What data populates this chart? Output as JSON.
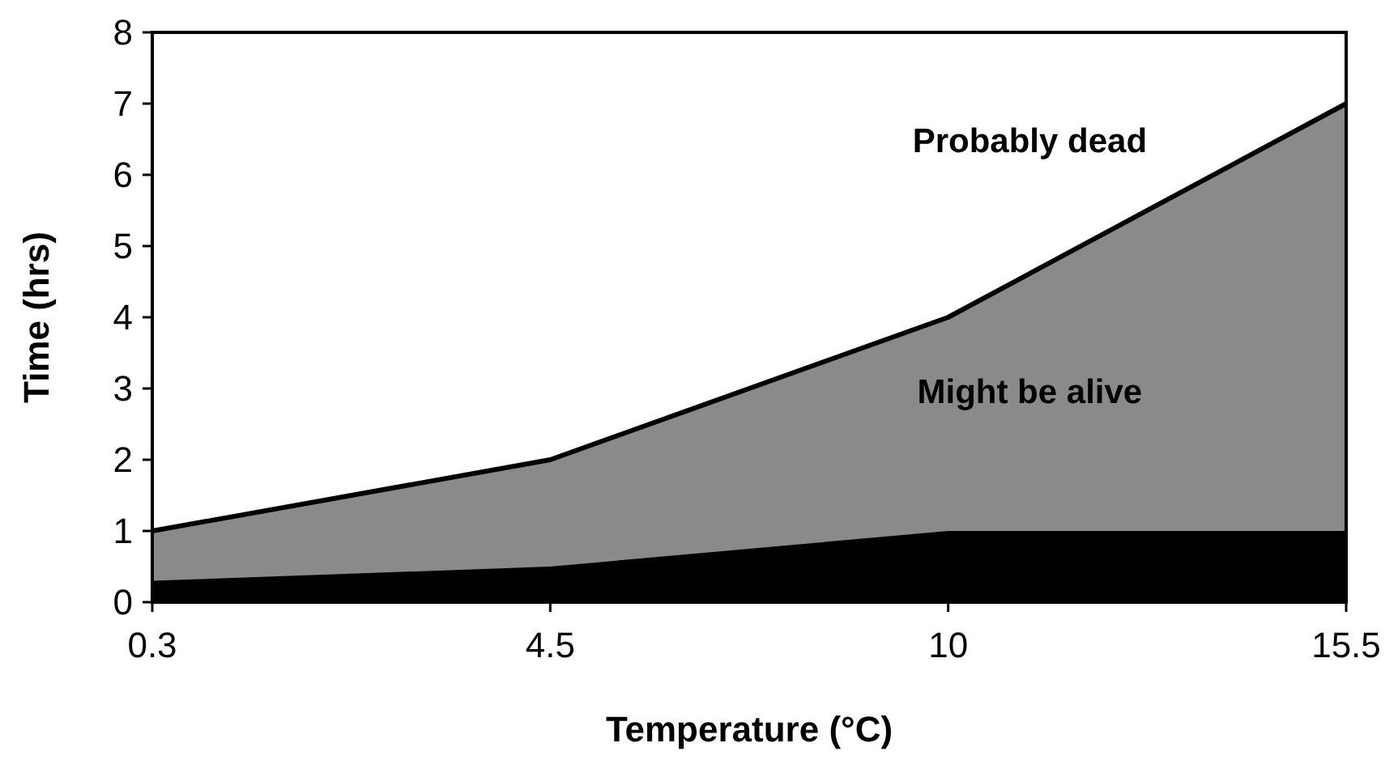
{
  "chart_data": {
    "type": "area",
    "xlabel": "Temperature (°C)",
    "ylabel": "Time (hrs)",
    "categories": [
      "0.3",
      "4.5",
      "10",
      "15.5"
    ],
    "series": [
      {
        "color": "#8a8a8a",
        "values": [
          1,
          2,
          4,
          7
        ]
      },
      {
        "color": "#000000",
        "values": [
          0.3,
          0.5,
          1,
          1
        ]
      }
    ],
    "ylim": [
      0,
      8
    ],
    "yticks": [
      0,
      1,
      2,
      3,
      4,
      5,
      6,
      7,
      8
    ],
    "grid": false,
    "annotations": [
      "Probably dead",
      "Might be alive"
    ]
  }
}
